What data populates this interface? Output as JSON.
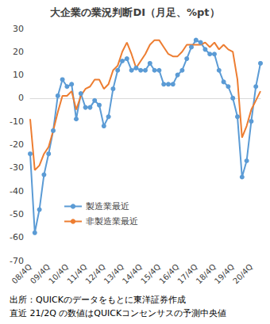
{
  "chart_data": {
    "type": "line",
    "title": "大企業の業況判断DI（月足、%pt）",
    "categories": [
      "08/4Q",
      null,
      null,
      null,
      "09/4Q",
      null,
      null,
      null,
      "10/4Q",
      null,
      null,
      null,
      "11/4Q",
      null,
      null,
      null,
      "12/4Q",
      null,
      null,
      null,
      "13/4Q",
      null,
      null,
      null,
      "14/4Q",
      null,
      null,
      null,
      "15/4Q",
      null,
      null,
      null,
      "16/4Q",
      null,
      null,
      null,
      "17/4Q",
      null,
      null,
      null,
      "18/4Q",
      null,
      null,
      null,
      "19/4Q",
      null,
      null,
      null,
      "20/4Q",
      null,
      null
    ],
    "series": [
      {
        "name": "製造業最近",
        "color": "#5b9bd5",
        "marker": "circle",
        "values": [
          -24,
          -58,
          -48,
          -33,
          -24,
          -14,
          1,
          8,
          5,
          6,
          -9,
          2,
          -4,
          -4,
          -1,
          -3,
          -12,
          -8,
          4,
          12,
          16,
          17,
          12,
          13,
          12,
          12,
          15,
          12,
          12,
          6,
          6,
          6,
          10,
          12,
          17,
          22,
          25,
          24,
          21,
          19,
          19,
          12,
          7,
          5,
          0,
          -8,
          -34,
          -27,
          -10,
          5,
          15
        ]
      },
      {
        "name": "非製造業最近",
        "color": "#ed7d31",
        "marker": "none",
        "values": [
          -9,
          -31,
          -29,
          -24,
          -21,
          -14,
          -6,
          1,
          1,
          3,
          -5,
          1,
          4,
          5,
          8,
          8,
          4,
          6,
          12,
          14,
          20,
          24,
          19,
          13,
          16,
          19,
          23,
          25,
          25,
          22,
          19,
          18,
          18,
          20,
          23,
          23,
          23,
          23,
          24,
          22,
          24,
          21,
          23,
          21,
          20,
          8,
          -17,
          -12,
          -5,
          -1,
          3
        ]
      }
    ],
    "ylim": [
      -70,
      30
    ],
    "yticks": [
      -70,
      -60,
      -50,
      -40,
      -30,
      -20,
      -10,
      0,
      10,
      20,
      30
    ],
    "grid": false,
    "legend": "center",
    "notes": [
      "出所：QUICKのデータをもとに東洋証券作成",
      "直近 21/2Q の数値はQUICKコンセンサスの予測中央値"
    ]
  }
}
